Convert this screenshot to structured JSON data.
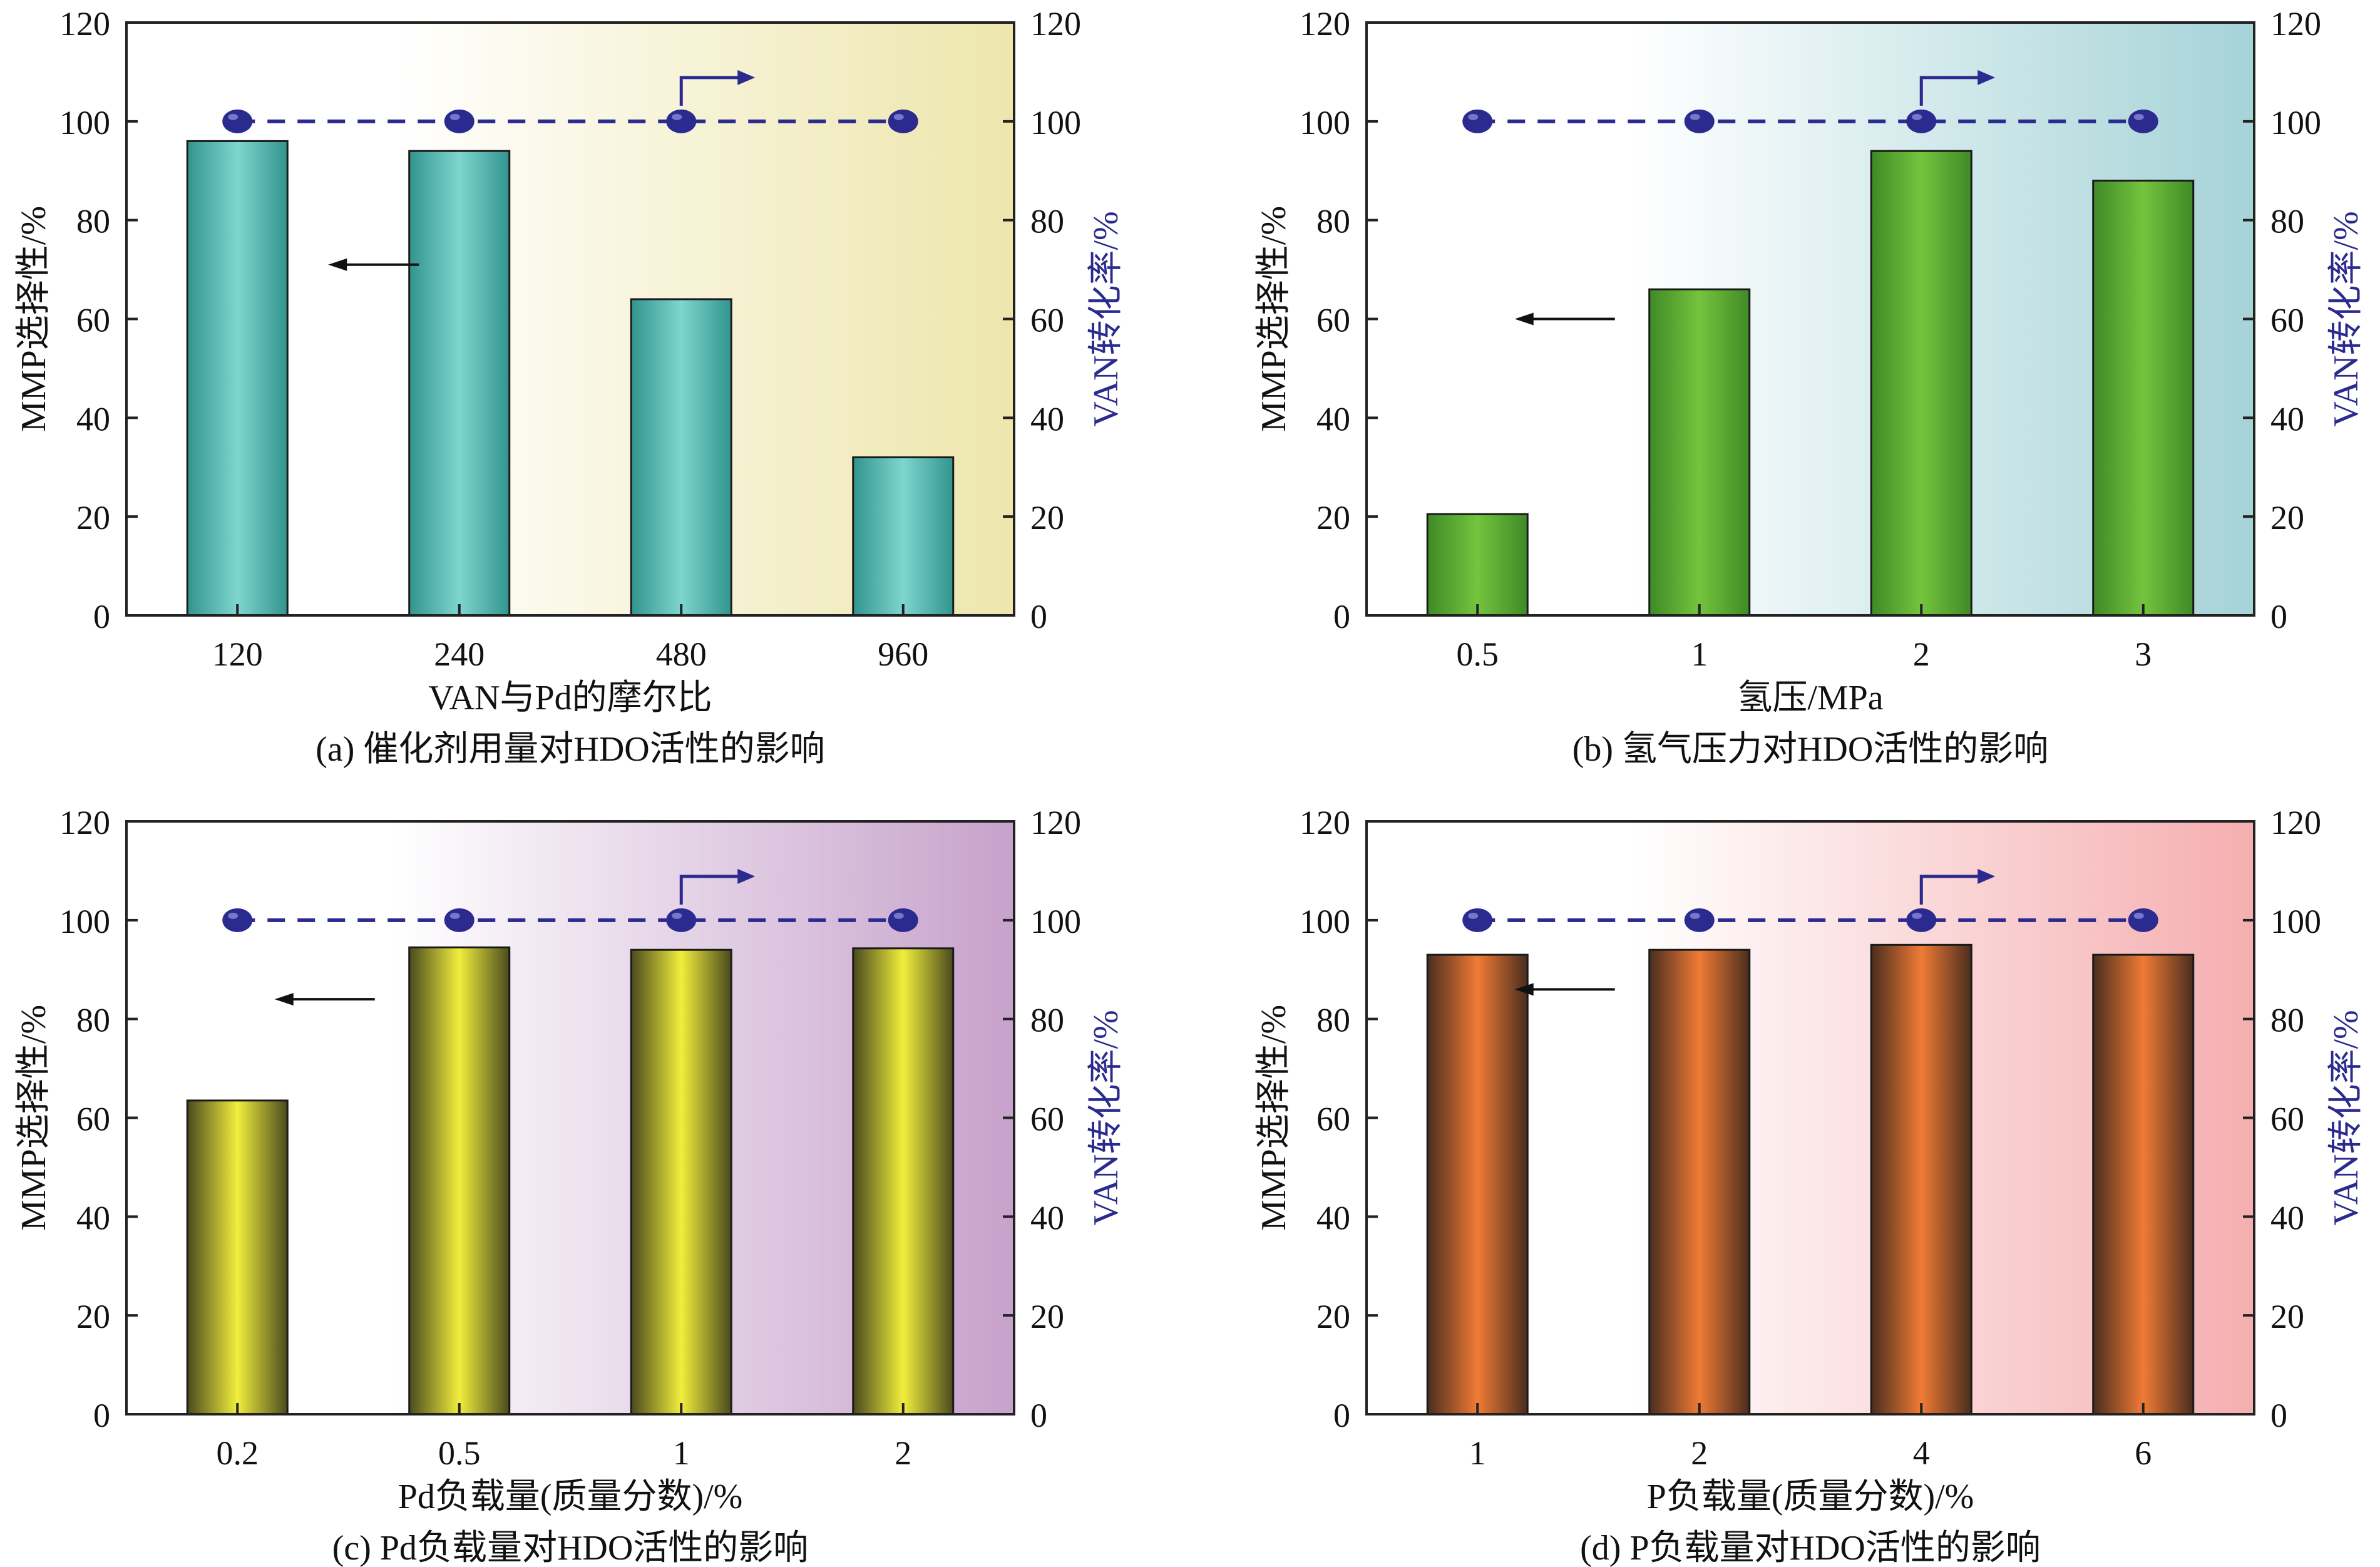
{
  "chart_data": [
    {
      "type": "bar",
      "caption": "(a) 催化剂用量对HDO活性的影响",
      "xlabel": "VAN与Pd的摩尔比",
      "ylabel": "MMP选择性/%",
      "ylabel_right": "VAN转化率/%",
      "categories": [
        "120",
        "240",
        "480",
        "960"
      ],
      "ylim": [
        0,
        120
      ],
      "yticks": [
        "0",
        "20",
        "40",
        "60",
        "80",
        "100",
        "120"
      ],
      "series": [
        {
          "name": "MMP选择性/%",
          "type": "bar",
          "axis": "left",
          "values": [
            96,
            94,
            64,
            32
          ]
        },
        {
          "name": "VAN转化率/%",
          "type": "line",
          "axis": "right",
          "values": [
            100,
            100,
            100,
            100
          ]
        }
      ],
      "colors": {
        "bg_left": "#ffffff",
        "bg_right": "#ede6ac",
        "bar_edge": "#32948e",
        "bar_center": "#7fd5cf"
      }
    },
    {
      "type": "bar",
      "caption": "(b) 氢气压力对HDO活性的影响",
      "xlabel": "氢压/MPa",
      "ylabel": "MMP选择性/%",
      "ylabel_right": "VAN转化率/%",
      "categories": [
        "0.5",
        "1",
        "2",
        "3"
      ],
      "ylim": [
        0,
        120
      ],
      "yticks": [
        "0",
        "20",
        "40",
        "60",
        "80",
        "100",
        "120"
      ],
      "series": [
        {
          "name": "MMP选择性/%",
          "type": "bar",
          "axis": "left",
          "values": [
            20.5,
            66,
            94,
            88
          ]
        },
        {
          "name": "VAN转化率/%",
          "type": "line",
          "axis": "right",
          "values": [
            100,
            100,
            100,
            100
          ]
        }
      ],
      "colors": {
        "bg_left": "#ffffff",
        "bg_right": "#a5d3d7",
        "bar_edge": "#3f8a26",
        "bar_center": "#74c43e"
      }
    },
    {
      "type": "bar",
      "caption": "(c) Pd负载量对HDO活性的影响",
      "xlabel": "Pd负载量(质量分数)/%",
      "ylabel": "MMP选择性/%",
      "ylabel_right": "VAN转化率/%",
      "categories": [
        "0.2",
        "0.5",
        "1",
        "2"
      ],
      "ylim": [
        0,
        120
      ],
      "yticks": [
        "0",
        "20",
        "40",
        "60",
        "80",
        "100",
        "120"
      ],
      "series": [
        {
          "name": "MMP选择性/%",
          "type": "bar",
          "axis": "left",
          "values": [
            63.5,
            94.5,
            94,
            94.3
          ]
        },
        {
          "name": "VAN转化率/%",
          "type": "line",
          "axis": "right",
          "values": [
            100,
            100,
            100,
            100
          ]
        }
      ],
      "colors": {
        "bg_left": "#ffffff",
        "bg_right": "#c7a2cb",
        "bar_edge": "#4a4a1e",
        "bar_center": "#f1ee3c"
      }
    },
    {
      "type": "bar",
      "caption": "(d) P负载量对HDO活性的影响",
      "xlabel": "P负载量(质量分数)/%",
      "ylabel": "MMP选择性/%",
      "ylabel_right": "VAN转化率/%",
      "categories": [
        "1",
        "2",
        "4",
        "6"
      ],
      "ylim": [
        0,
        120
      ],
      "yticks": [
        "0",
        "20",
        "40",
        "60",
        "80",
        "100",
        "120"
      ],
      "series": [
        {
          "name": "MMP选择性/%",
          "type": "bar",
          "axis": "left",
          "values": [
            93,
            94,
            95,
            93
          ]
        },
        {
          "name": "VAN转化率/%",
          "type": "line",
          "axis": "right",
          "values": [
            100,
            100,
            100,
            100
          ]
        }
      ],
      "colors": {
        "bg_left": "#ffffff",
        "bg_right": "#f5aeb0",
        "bar_edge": "#4a2d1e",
        "bar_center": "#f07b35"
      }
    }
  ],
  "style": {
    "line_color": "#2b2a8f",
    "marker_color": "#2b2a8f",
    "axis_color": "#222222",
    "right_label_color": "#2b2a8f"
  }
}
